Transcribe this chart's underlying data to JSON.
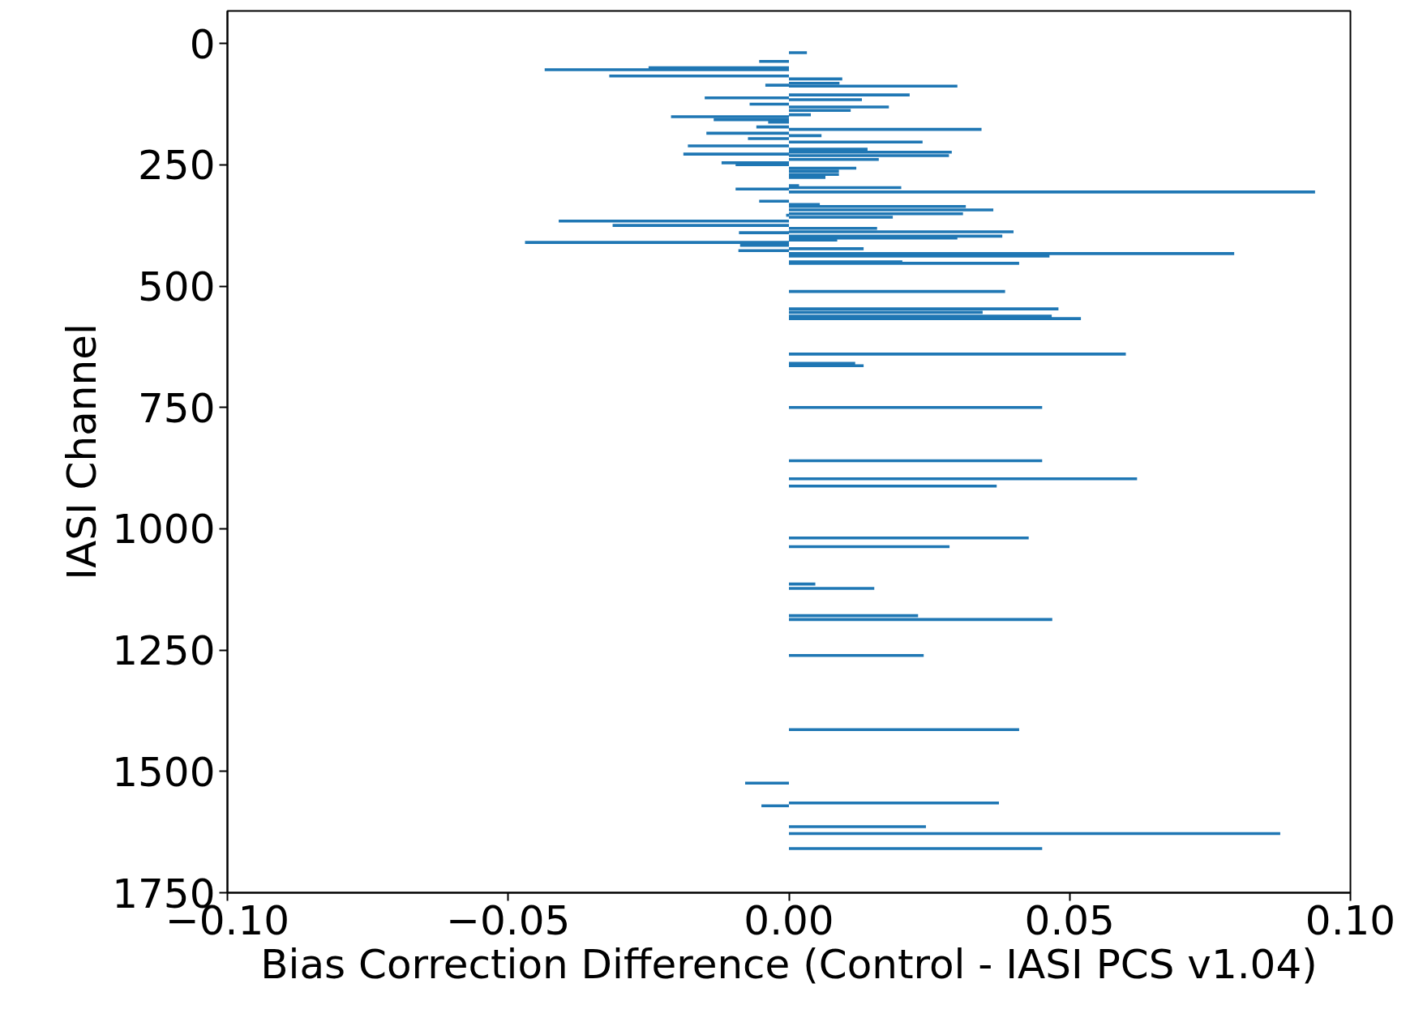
{
  "chart_data": {
    "type": "bar",
    "orientation": "horizontal",
    "xlabel": "Bias Correction Difference (Control - IASI PCS v1.04)",
    "ylabel": "IASI Channel",
    "x": [
      19,
      37,
      50,
      54,
      67,
      73,
      82,
      86,
      88,
      106,
      112,
      116,
      125,
      131,
      138,
      147,
      151,
      157,
      162,
      172,
      177,
      185,
      190,
      196,
      203,
      211,
      218,
      224,
      228,
      231,
      235,
      239,
      246,
      250,
      257,
      263,
      270,
      276,
      293,
      297,
      300,
      306,
      325,
      332,
      336,
      343,
      351,
      354,
      358,
      366,
      375,
      381,
      388,
      390,
      397,
      401,
      405,
      410,
      416,
      423,
      427,
      433,
      438,
      450,
      453,
      511,
      547,
      554,
      562,
      567,
      640,
      659,
      664,
      750,
      860,
      897,
      912,
      1019,
      1037,
      1114,
      1123,
      1179,
      1187,
      1261,
      1414,
      1524,
      1565,
      1571,
      1614,
      1628,
      1659
    ],
    "values": [
      0.0032,
      -0.0053,
      -0.025,
      -0.0435,
      -0.032,
      0.0095,
      0.009,
      -0.0042,
      0.03,
      0.0215,
      -0.015,
      0.013,
      -0.007,
      0.0178,
      0.011,
      0.0039,
      -0.021,
      -0.0134,
      -0.0037,
      -0.0058,
      0.0343,
      -0.0147,
      0.0058,
      -0.0073,
      0.0238,
      -0.018,
      0.014,
      0.029,
      -0.0188,
      0.0285,
      null,
      0.016,
      -0.012,
      -0.0095,
      0.012,
      0.0089,
      0.0089,
      0.0065,
      0.0018,
      0.02,
      -0.0095,
      0.0937,
      -0.0053,
      0.0055,
      0.0315,
      0.0364,
      0.031,
      -0.0005,
      0.0185,
      -0.041,
      -0.0314,
      0.0157,
      0.04,
      -0.0089,
      0.038,
      0.03,
      0.0086,
      -0.047,
      -0.0087,
      0.0133,
      -0.009,
      0.0793,
      0.0464,
      0.0202,
      0.041,
      0.0385,
      0.048,
      0.0345,
      0.0468,
      0.052,
      0.06,
      0.0118,
      0.0133,
      0.0451,
      0.0451,
      0.062,
      0.037,
      0.0427,
      0.0286,
      0.0047,
      0.0152,
      0.023,
      0.0469,
      0.024,
      0.041,
      -0.0078,
      0.0374,
      -0.0049,
      0.0244,
      0.0875,
      0.0451
    ],
    "color": "#1f77b4",
    "xlim": [
      -0.1,
      0.1
    ],
    "xticks": [
      {
        "value": -0.1,
        "label": "−0.10"
      },
      {
        "value": -0.05,
        "label": "−0.05"
      },
      {
        "value": 0,
        "label": "0.00"
      },
      {
        "value": 0.05,
        "label": "0.05"
      },
      {
        "value": 0.1,
        "label": "0.10"
      }
    ],
    "ylim": [
      1750,
      -67
    ],
    "yticks": [
      0,
      250,
      500,
      750,
      1000,
      1250,
      1500,
      1750
    ],
    "grid": false
  }
}
